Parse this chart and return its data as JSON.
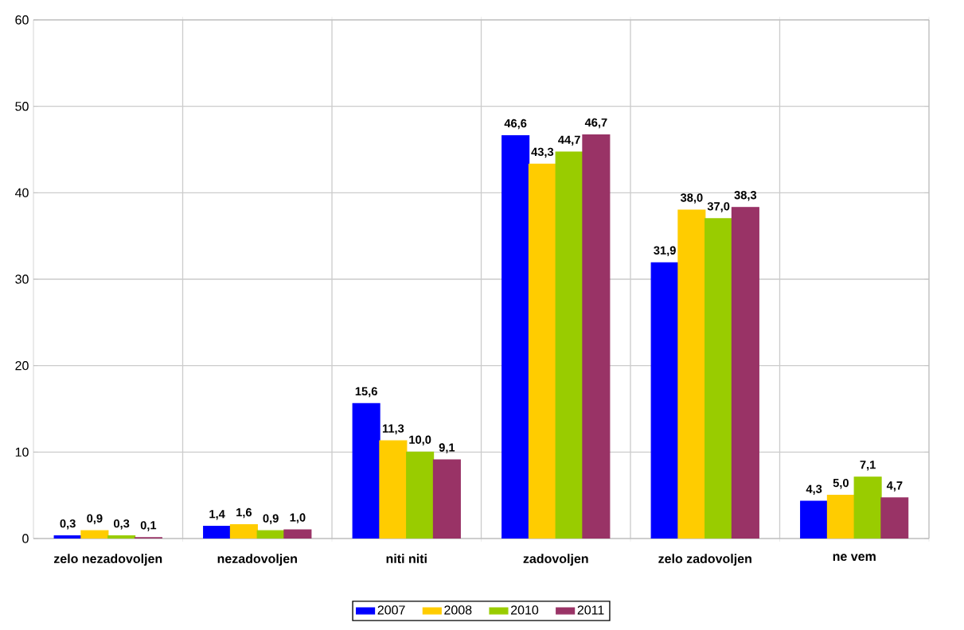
{
  "chart_data": {
    "type": "bar",
    "categories": [
      "zelo nezadovoljen",
      "nezadovoljen",
      "niti niti",
      "zadovoljen",
      "zelo zadovoljen",
      "ne vem"
    ],
    "series": [
      {
        "name": "2007",
        "color": "#0000ff",
        "values": [
          0.3,
          1.4,
          15.6,
          46.6,
          31.9,
          4.3
        ],
        "value_labels": [
          "0,3",
          "1,4",
          "15,6",
          "46,6",
          "31,9",
          "4,3"
        ]
      },
      {
        "name": "2008",
        "color": "#ffcc00",
        "values": [
          0.9,
          1.6,
          11.3,
          43.3,
          38.0,
          5.0
        ],
        "value_labels": [
          "0,9",
          "1,6",
          "11,3",
          "43,3",
          "38,0",
          "5,0"
        ]
      },
      {
        "name": "2010",
        "color": "#99cc00",
        "values": [
          0.3,
          0.9,
          10.0,
          44.7,
          37.0,
          7.1
        ],
        "value_labels": [
          "0,3",
          "0,9",
          "10,0",
          "44,7",
          "37,0",
          "7,1"
        ]
      },
      {
        "name": "2011",
        "color": "#993366",
        "values": [
          0.1,
          1.0,
          9.1,
          46.7,
          38.3,
          4.7
        ],
        "value_labels": [
          "0,1",
          "1,0",
          "9,1",
          "46,7",
          "38,3",
          "4,7"
        ]
      }
    ],
    "ylim": [
      0,
      60
    ],
    "yticks": [
      0,
      10,
      20,
      30,
      40,
      50,
      60
    ],
    "grid": true,
    "legend": "bottom"
  }
}
